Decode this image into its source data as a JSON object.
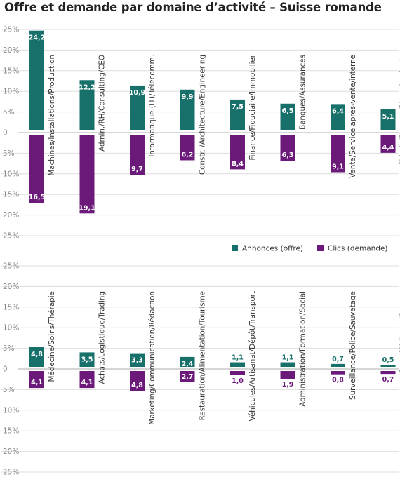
{
  "title": "Offre et demande par domaine d’activité – Suisse romande",
  "colors": {
    "supply": "#17706a",
    "demand": "#6b1a7a",
    "grid": "#dedede",
    "zero": "#bdbdbd"
  },
  "chart_data": {
    "type": "bar",
    "title": "Offre et demande par domaine d’activité – Suisse romande",
    "ylim": [
      -25,
      25
    ],
    "tick_labels": [
      "25%",
      "20%",
      "15%",
      "10%",
      "5%",
      "0",
      "5%",
      "10%",
      "15%",
      "20%",
      "25%"
    ],
    "grid": true,
    "legend_placement": "right, between panels",
    "legend": [
      {
        "key": "supply",
        "label": "Annonces (offre)"
      },
      {
        "key": "demand",
        "label": "Clics (demande)"
      }
    ],
    "panels": [
      {
        "categories": [
          "Machines/Installations/Production",
          "Admin./RH/Consulting/CEO",
          "Informatique (IT)/Télécomm.",
          "Constr. /Architecture/Engineering",
          "Finance/Fiduciaire/Immobilier",
          "Banques/Assurances",
          "Vente/Service après-vente/interne",
          "Chimie/Pharma/Biotechnologie"
        ],
        "series": [
          {
            "name": "Annonces (offre)",
            "values": [
              24.2,
              12.2,
              10.9,
              9.9,
              7.5,
              6.5,
              6.4,
              5.1
            ],
            "labels": [
              "24,2",
              "12,2",
              "10,9",
              "9,9",
              "7,5",
              "6,5",
              "6,4",
              "5,1"
            ]
          },
          {
            "name": "Clics (demande)",
            "values": [
              16.5,
              19.1,
              9.7,
              6.2,
              8.4,
              6.3,
              9.1,
              4.4
            ],
            "labels": [
              "16,5",
              "19,1",
              "9,7",
              "6,2",
              "8,4",
              "6,3",
              "9,1",
              "4,4"
            ]
          }
        ]
      },
      {
        "categories": [
          "Médecine/Soins/Thérapie",
          "Achats/Logistique/Trading",
          "Marketing/Communication/Rédaction",
          "Restauration/Alimentation/Tourisme",
          "Véhicules/Artisanat/Dépôt/Transport",
          "Administration/Formation/Social",
          "Surveillance/Police/Sauvetage",
          "Sport/Wellness/Culture"
        ],
        "series": [
          {
            "name": "Annonces (offre)",
            "values": [
              4.8,
              3.5,
              3.3,
              2.4,
              1.1,
              1.1,
              0.7,
              0.5
            ],
            "labels": [
              "4,8",
              "3,5",
              "3,3",
              "2,4",
              "1,1",
              "1,1",
              "0,7",
              "0,5"
            ]
          },
          {
            "name": "Clics (demande)",
            "values": [
              4.1,
              4.1,
              4.8,
              2.7,
              1.0,
              1.9,
              0.8,
              0.7
            ],
            "labels": [
              "4,1",
              "4,1",
              "4,8",
              "2,7",
              "1,0",
              "1,9",
              "0,8",
              "0,7"
            ]
          }
        ]
      }
    ]
  }
}
